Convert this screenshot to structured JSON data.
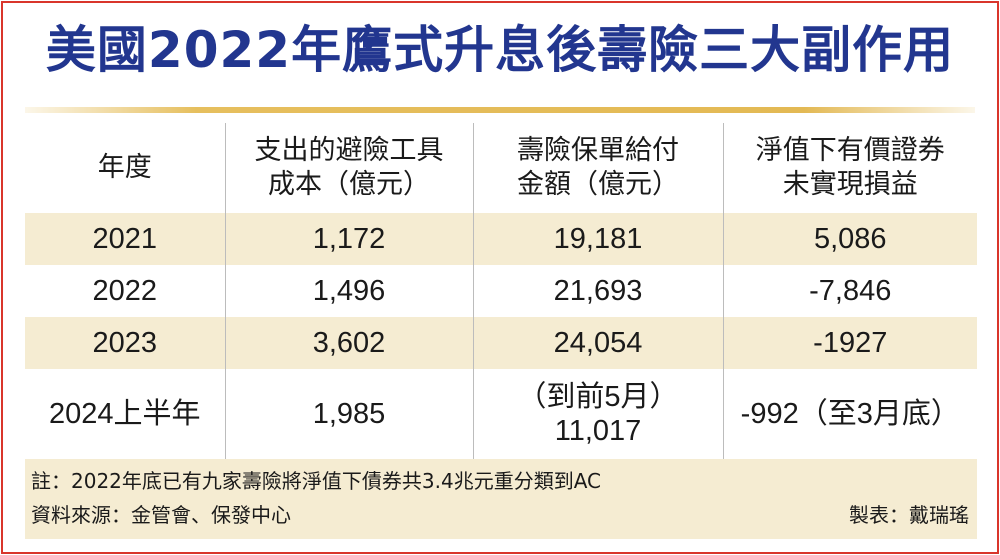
{
  "title": "美國2022年鷹式升息後壽險三大副作用",
  "colors": {
    "title": "#22368f",
    "border": "#d9352b",
    "band": "#f5ecd2",
    "rule": "#e6bf5e"
  },
  "table": {
    "headers": [
      "年度",
      "支出的避險工具\n成本（億元）",
      "壽險保單給付\n金額（億元）",
      "淨值下有價證券\n未實現損益"
    ],
    "rows": [
      [
        "2021",
        "1,172",
        "19,181",
        "5,086"
      ],
      [
        "2022",
        "1,496",
        "21,693",
        "-7,846"
      ],
      [
        "2023",
        "3,602",
        "24,054",
        "-1927"
      ],
      [
        "2024上半年",
        "1,985",
        "（到前5月）\n11,017",
        "-992（至3月底）"
      ]
    ]
  },
  "note": "註：2022年底已有九家壽險將淨值下債券共3.4兆元重分類到AC",
  "source": "資料來源：金管會、保發中心",
  "credit": "製表：戴瑞瑤"
}
